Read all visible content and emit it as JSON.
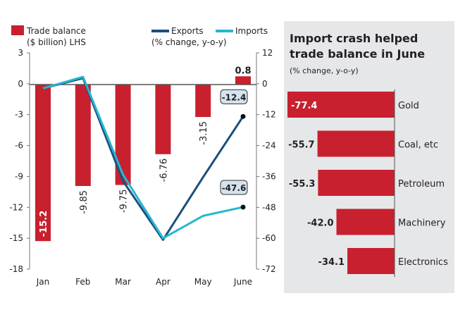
{
  "colors": {
    "bar": "#c8202e",
    "exports": "#1b4f7c",
    "imports": "#27b7cf",
    "panel": "#e6e7e9",
    "callout": "#d3e3ef"
  },
  "chart_data": [
    {
      "type": "bar+line",
      "legend": {
        "bar_label_1": "Trade balance",
        "bar_label_2": "($ billion) LHS",
        "exports": "Exports",
        "imports": "Imports",
        "line_unit": "(% change, y-o-y)"
      },
      "categories": [
        "Jan",
        "Feb",
        "Mar",
        "Apr",
        "May",
        "June"
      ],
      "left_axis": {
        "ylim": [
          -18,
          3
        ],
        "ticks": [
          "3",
          "0",
          "-3",
          "-6",
          "-9",
          "-12",
          "-15",
          "-18"
        ]
      },
      "right_axis": {
        "ylim": [
          -72,
          12
        ],
        "ticks": [
          "12",
          "0",
          "-12",
          "-24",
          "-36",
          "-48",
          "-60",
          "-72"
        ]
      },
      "bars": {
        "name": "Trade balance",
        "values": [
          -15.2,
          -9.85,
          -9.75,
          -6.76,
          -3.15,
          0.8
        ],
        "labels": [
          "-15.2",
          "-9.85",
          "-9.75",
          "-6.76",
          "-3.15",
          "0.8"
        ]
      },
      "series": [
        {
          "name": "Exports",
          "values": [
            -1.5,
            2.5,
            -37.5,
            -60.3,
            -36,
            -12.4
          ],
          "callout": "-12.4"
        },
        {
          "name": "Imports",
          "values": [
            -1.5,
            3,
            -35,
            -59.7,
            -51,
            -47.6
          ],
          "callout": "-47.6"
        }
      ]
    },
    {
      "type": "bar",
      "orientation": "horizontal",
      "title_line1": "Import crash helped",
      "title_line2": "trade balance in June",
      "subtitle": "(% change, y-o-y)",
      "categories": [
        "Gold",
        "Coal, etc",
        "Petroleum",
        "Machinery",
        "Electronics"
      ],
      "values": [
        -77.4,
        -55.7,
        -55.3,
        -42.0,
        -34.1
      ],
      "labels": [
        "-77.4",
        "-55.7",
        "-55.3",
        "-42.0",
        "-34.1"
      ]
    }
  ]
}
